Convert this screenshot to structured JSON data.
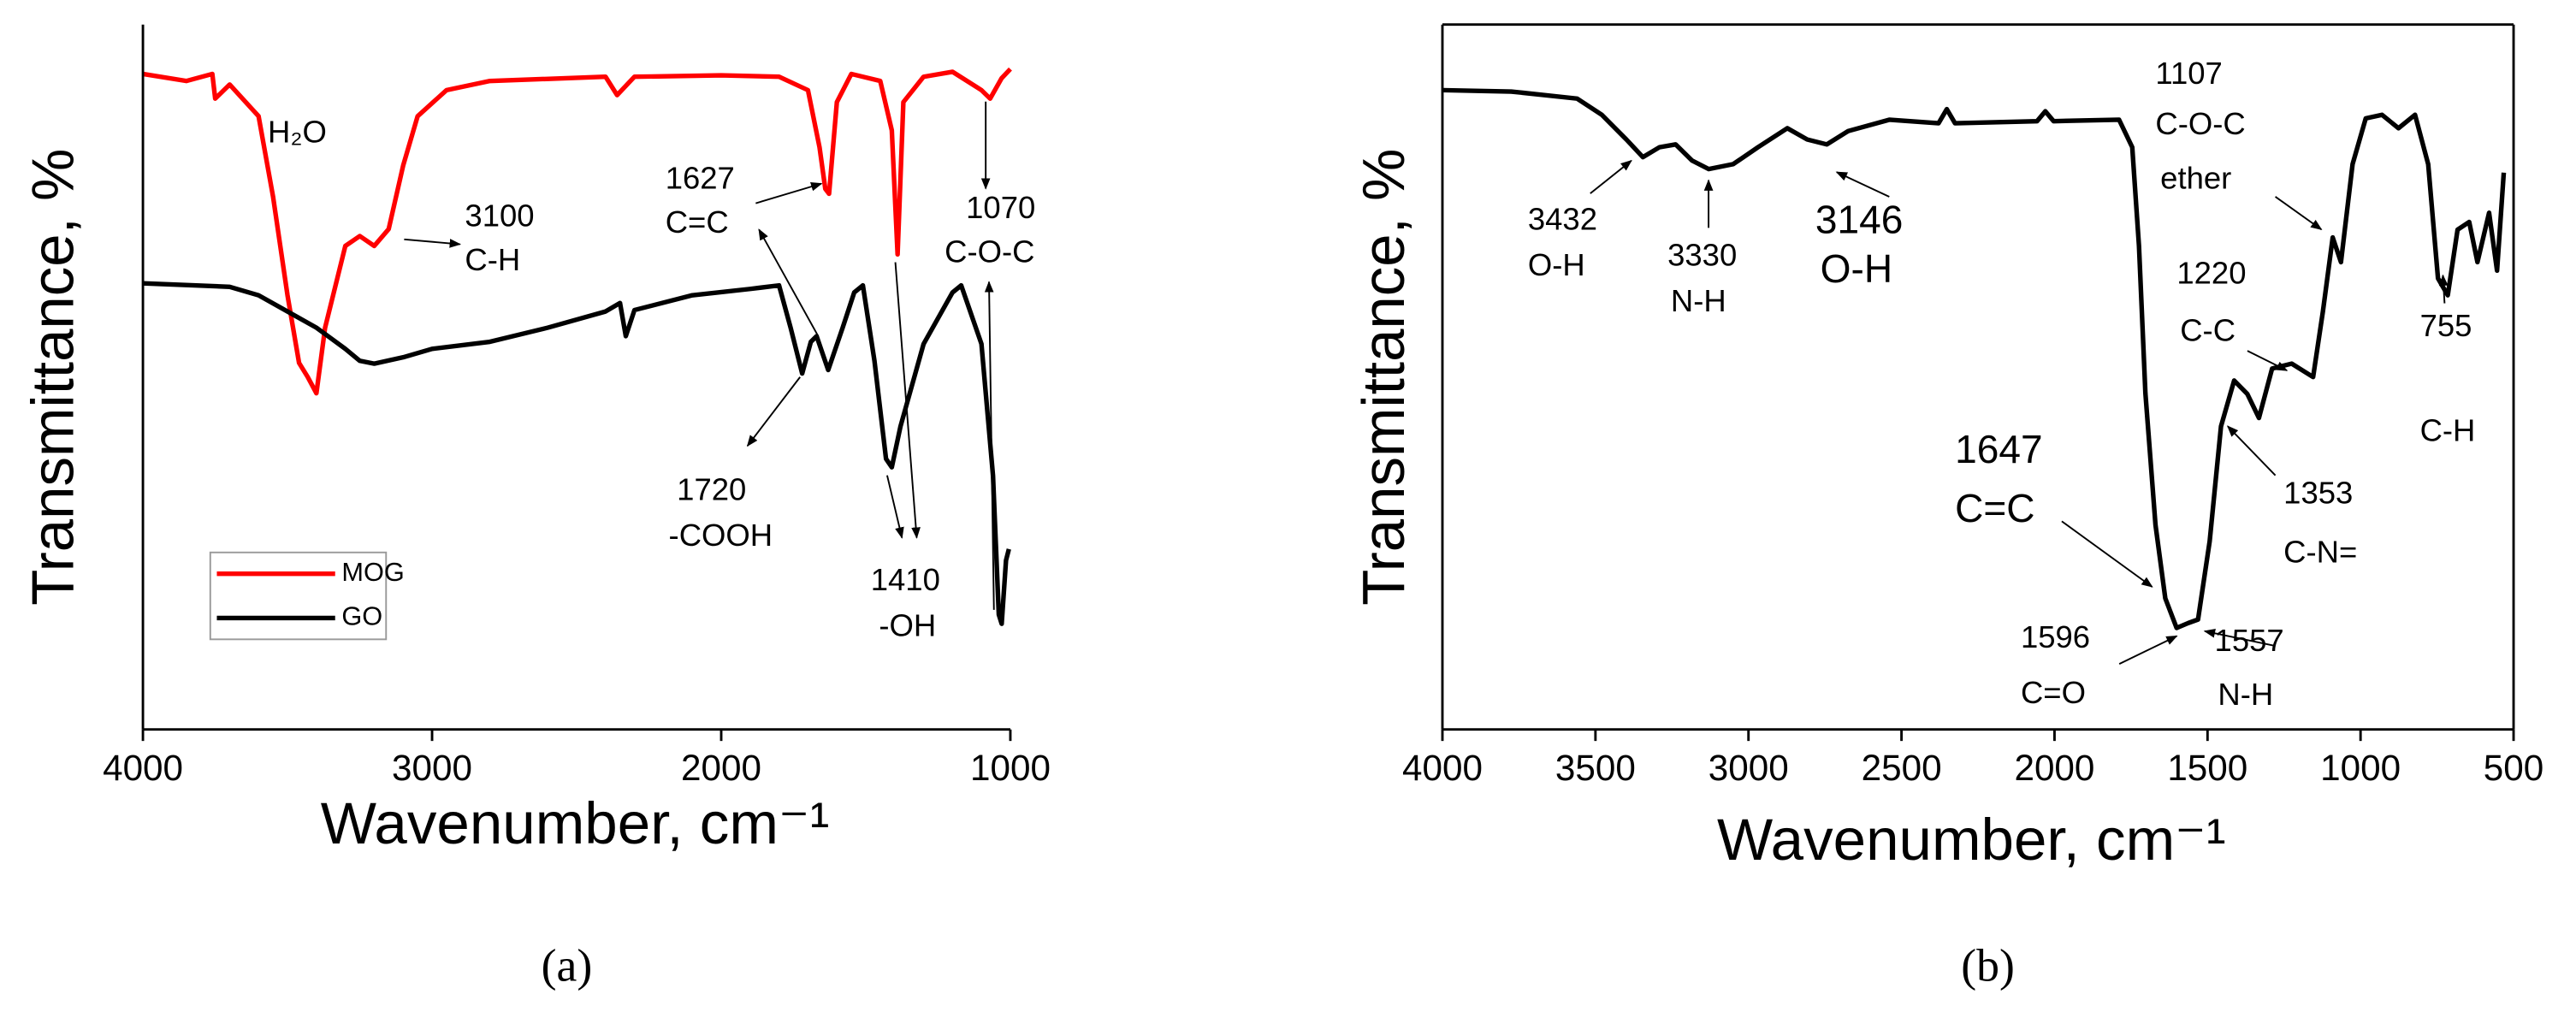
{
  "chart_data": [
    {
      "type": "line",
      "panel": "(a)",
      "xlabel": "Wavenumber, cm⁻¹",
      "ylabel": "Transmittance, %",
      "xlim": [
        4000,
        1000
      ],
      "ylim": [
        0,
        100
      ],
      "xticks": [
        4000,
        3000,
        2000,
        1000
      ],
      "box": false,
      "legend": "lower left",
      "series": [
        {
          "name": "MOG",
          "color": "#ff0000",
          "x": [
            4000,
            3850,
            3760,
            3750,
            3700,
            3600,
            3550,
            3500,
            3460,
            3430,
            3400,
            3370,
            3300,
            3250,
            3200,
            3150,
            3100,
            3050,
            2950,
            2800,
            2400,
            2360,
            2300,
            2000,
            1800,
            1700,
            1660,
            1640,
            1627,
            1600,
            1550,
            1450,
            1410,
            1390,
            1370,
            1300,
            1200,
            1100,
            1070,
            1030,
            1000
          ],
          "values": [
            93,
            92,
            93,
            89.5,
            91.5,
            87,
            75.6,
            61.6,
            52,
            50,
            47.7,
            57,
            68.6,
            70,
            68.6,
            71,
            80,
            87,
            90.7,
            92,
            92.6,
            90,
            92.6,
            92.8,
            92.6,
            90.7,
            82.6,
            76.7,
            76,
            89,
            93,
            92,
            85,
            67.4,
            89,
            92.6,
            93.3,
            90.7,
            89.5,
            92.4,
            93.7
          ]
        },
        {
          "name": "GO",
          "color": "#000000",
          "x": [
            4000,
            3700,
            3600,
            3500,
            3400,
            3300,
            3250,
            3200,
            3100,
            3000,
            2800,
            2600,
            2400,
            2350,
            2330,
            2300,
            2100,
            1900,
            1800,
            1760,
            1720,
            1690,
            1670,
            1630,
            1580,
            1540,
            1510,
            1470,
            1430,
            1410,
            1380,
            1300,
            1200,
            1170,
            1100,
            1060,
            1040,
            1030,
            1015,
            1005
          ],
          "values": [
            63.3,
            62.8,
            61.6,
            59.3,
            57,
            54,
            52.3,
            51.9,
            52.8,
            54,
            55,
            57,
            59.3,
            60.5,
            55.8,
            59.5,
            61.6,
            62.5,
            63,
            57,
            50.5,
            55,
            55.8,
            51,
            57,
            62,
            63,
            52.3,
            38.4,
            37.2,
            43,
            54.7,
            62,
            63,
            54.7,
            36,
            16.3,
            15,
            24,
            25.6
          ]
        }
      ],
      "annotations": [
        [
          "H₂O"
        ],
        [
          "3100",
          "C-H"
        ],
        [
          "1627",
          "C=C"
        ],
        [
          "1720",
          "-COOH"
        ],
        [
          "1410",
          "-OH"
        ],
        [
          "1070",
          "C-O-C"
        ]
      ]
    },
    {
      "type": "line",
      "panel": "(b)",
      "xlabel": "Wavenumber, cm⁻¹",
      "ylabel": "Transmittance, %",
      "xlim": [
        4000,
        500
      ],
      "ylim": [
        0,
        100
      ],
      "xticks": [
        4000,
        3500,
        3000,
        2500,
        2000,
        1500,
        1000,
        500
      ],
      "box": true,
      "series": [
        {
          "color": "#000000",
          "x": [
            4000,
            3775,
            3560,
            3479,
            3399,
            3345,
            3291,
            3238,
            3184,
            3130,
            3050,
            2969,
            2873,
            2808,
            2744,
            2674,
            2540,
            2379,
            2352,
            2325,
            2057,
            2030,
            2003,
            1789,
            1746,
            1724,
            1703,
            1670,
            1638,
            1601,
            1563,
            1531,
            1493,
            1456,
            1413,
            1370,
            1332,
            1289,
            1225,
            1155,
            1123,
            1091,
            1064,
            1026,
            983,
            930,
            876,
            822,
            779,
            747,
            715,
            683,
            645,
            618,
            580,
            554,
            532
          ],
          "values": [
            90.7,
            90.5,
            89.5,
            87.2,
            83.7,
            81.2,
            82.6,
            83,
            80.7,
            79.5,
            80.2,
            82.6,
            85.3,
            83.7,
            83,
            84.9,
            86.5,
            86,
            88,
            86,
            86.3,
            87.7,
            86.3,
            86.5,
            82.6,
            68.6,
            47.7,
            29,
            18.6,
            14.4,
            15.1,
            15.6,
            26.7,
            43,
            49.5,
            47.6,
            44.2,
            51.2,
            51.9,
            50,
            59.3,
            69.8,
            66.3,
            80.2,
            86.7,
            87.2,
            85.3,
            87.2,
            80.2,
            64,
            61.6,
            70.9,
            72,
            66.3,
            73.3,
            65.1,
            79
          ]
        }
      ],
      "annotations": [
        [
          "3432",
          "O-H"
        ],
        [
          "3330",
          "N-H"
        ],
        [
          "3146",
          "O-H"
        ],
        [
          "1107",
          "C-O-C",
          "ether"
        ],
        [
          "1220",
          "C-C"
        ],
        [
          "755",
          "C-H"
        ],
        [
          "1353",
          "C-N="
        ],
        [
          "1647",
          "C=C"
        ],
        [
          "1596",
          "C=O"
        ],
        [
          "1557",
          "N-H"
        ]
      ]
    }
  ]
}
